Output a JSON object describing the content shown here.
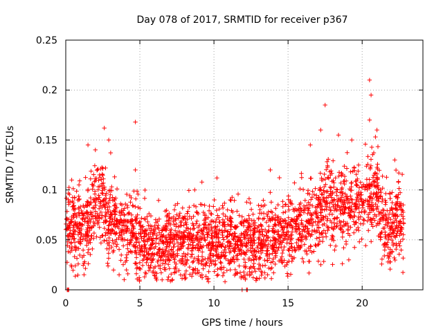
{
  "chart_data": {
    "type": "scatter",
    "title": "Day 078 of 2017, SRMTID for receiver p367",
    "xlabel": "GPS time / hours",
    "ylabel": "SRMTID / TECUs",
    "xlim": [
      0,
      24.1
    ],
    "ylim": [
      0,
      0.25
    ],
    "grid": true,
    "xticks": [
      0,
      5,
      10,
      15,
      20
    ],
    "xtick_labels": [
      "0",
      "5",
      "10",
      "15",
      "20"
    ],
    "yticks": [
      0,
      0.05,
      0.1,
      0.15,
      0.2,
      0.25
    ],
    "ytick_labels": [
      "0",
      "0.05",
      "0.1",
      "0.15",
      "0.2",
      "0.25"
    ],
    "marker": "+",
    "color": "#ff0000",
    "approx_point_count": 2700,
    "trend": {
      "hours": [
        0,
        0.5,
        1,
        1.5,
        2,
        2.5,
        3,
        3.5,
        4,
        5,
        6,
        7,
        8,
        9,
        10,
        11,
        12,
        13,
        14,
        15,
        16,
        17,
        18,
        19,
        20,
        20.5,
        21,
        21.5,
        22,
        22.5,
        22.8
      ],
      "values": [
        0.07,
        0.065,
        0.06,
        0.065,
        0.09,
        0.085,
        0.07,
        0.065,
        0.06,
        0.05,
        0.042,
        0.045,
        0.05,
        0.048,
        0.05,
        0.052,
        0.05,
        0.045,
        0.05,
        0.055,
        0.065,
        0.08,
        0.085,
        0.08,
        0.09,
        0.1,
        0.09,
        0.065,
        0.06,
        0.07,
        0.075
      ]
    },
    "peaks": [
      {
        "hour": 0.4,
        "value": 0.11
      },
      {
        "hour": 1.5,
        "value": 0.145
      },
      {
        "hour": 2.0,
        "value": 0.14
      },
      {
        "hour": 2.6,
        "value": 0.162
      },
      {
        "hour": 2.9,
        "value": 0.15
      },
      {
        "hour": 4.7,
        "value": 0.168
      },
      {
        "hour": 4.7,
        "value": 0.12
      },
      {
        "hour": 8.7,
        "value": 0.1
      },
      {
        "hour": 10.2,
        "value": 0.112
      },
      {
        "hour": 13.8,
        "value": 0.12
      },
      {
        "hour": 16.5,
        "value": 0.145
      },
      {
        "hour": 17.5,
        "value": 0.185
      },
      {
        "hour": 17.2,
        "value": 0.16
      },
      {
        "hour": 18.4,
        "value": 0.155
      },
      {
        "hour": 19.3,
        "value": 0.15
      },
      {
        "hour": 20.5,
        "value": 0.21
      },
      {
        "hour": 20.6,
        "value": 0.195
      },
      {
        "hour": 20.5,
        "value": 0.17
      },
      {
        "hour": 21.0,
        "value": 0.16
      },
      {
        "hour": 22.2,
        "value": 0.13
      }
    ],
    "lows": [
      {
        "hour": 3.6,
        "value": 0.015
      },
      {
        "hour": 6.5,
        "value": 0.01
      },
      {
        "hour": 8.1,
        "value": 0.012
      },
      {
        "hour": 11.1,
        "value": 0.02
      },
      {
        "hour": 12.4,
        "value": 0.018
      },
      {
        "hour": 19.1,
        "value": 0.03
      },
      {
        "hour": 21.9,
        "value": 0.028
      }
    ],
    "zero_points": [
      {
        "hour": 0.1,
        "value": 0
      },
      {
        "hour": 0.15,
        "value": 0
      },
      {
        "hour": 0.2,
        "value": 0
      },
      {
        "hour": 11.9,
        "value": 0
      },
      {
        "hour": 12.2,
        "value": 0
      },
      {
        "hour": 12.25,
        "value": 0
      }
    ]
  }
}
